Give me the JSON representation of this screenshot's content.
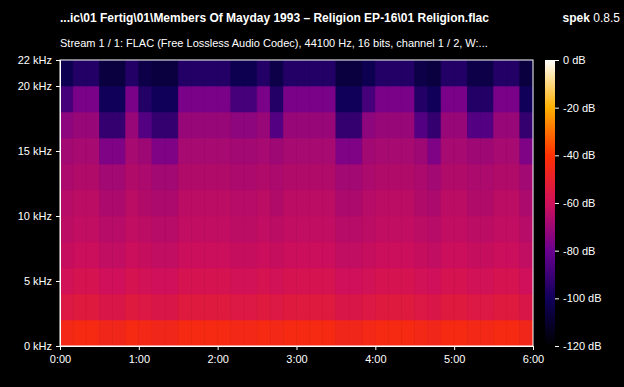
{
  "chart_data": {
    "type": "heatmap",
    "title": "...ic\\01 Fertig\\01\\Members Of Mayday 1993 – Religion EP-16\\01 Religion.flac",
    "subtitle": "Stream 1 / 1: FLAC (Free Lossless Audio Codec), 44100 Hz, 16 bits, channel 1 / 2, W:...",
    "annotations": [
      "spek 0.8.5"
    ],
    "xlim": [
      0,
      360
    ],
    "xticks": [
      {
        "value": 0,
        "label": "0:00"
      },
      {
        "value": 60,
        "label": "1:00"
      },
      {
        "value": 120,
        "label": "2:00"
      },
      {
        "value": 180,
        "label": "3:00"
      },
      {
        "value": 240,
        "label": "4:00"
      },
      {
        "value": 300,
        "label": "5:00"
      },
      {
        "value": 360,
        "label": "6:00"
      }
    ],
    "ylim": [
      0,
      22
    ],
    "yticks": [
      {
        "value": 0,
        "label": "0 kHz"
      },
      {
        "value": 5,
        "label": "5 kHz"
      },
      {
        "value": 10,
        "label": "10 kHz"
      },
      {
        "value": 15,
        "label": "15 kHz"
      },
      {
        "value": 20,
        "label": "20 kHz"
      },
      {
        "value": 22,
        "label": "22 kHz"
      }
    ],
    "x_bins": [
      0,
      10,
      20,
      30,
      40,
      50,
      60,
      70,
      80,
      90,
      100,
      110,
      120,
      130,
      140,
      150,
      160,
      170,
      180,
      190,
      200,
      210,
      220,
      230,
      240,
      250,
      260,
      270,
      280,
      290,
      300,
      310,
      320,
      330,
      340,
      350,
      360
    ],
    "y_bins": [
      0,
      2,
      4,
      6,
      8,
      10,
      12,
      14,
      16,
      18,
      20,
      22
    ],
    "values": [
      [
        -45,
        -44,
        -44,
        -46,
        -46,
        -44,
        -45,
        -46,
        -46,
        -44,
        -44,
        -44,
        -44,
        -45,
        -45,
        -44,
        -45,
        -44,
        -44,
        -44,
        -44,
        -46,
        -46,
        -45,
        -44,
        -44,
        -44,
        -45,
        -46,
        -44,
        -44,
        -45,
        -45,
        -44,
        -44,
        -46
      ],
      [
        -55,
        -54,
        -54,
        -56,
        -56,
        -54,
        -55,
        -56,
        -56,
        -54,
        -54,
        -54,
        -54,
        -55,
        -55,
        -54,
        -55,
        -54,
        -54,
        -54,
        -54,
        -56,
        -56,
        -55,
        -54,
        -54,
        -54,
        -55,
        -56,
        -54,
        -54,
        -55,
        -55,
        -54,
        -54,
        -56
      ],
      [
        -59,
        -58,
        -58,
        -60,
        -60,
        -58,
        -59,
        -60,
        -60,
        -58,
        -58,
        -58,
        -58,
        -59,
        -59,
        -58,
        -59,
        -58,
        -58,
        -58,
        -58,
        -60,
        -60,
        -59,
        -58,
        -58,
        -58,
        -59,
        -60,
        -58,
        -58,
        -59,
        -59,
        -58,
        -58,
        -60
      ],
      [
        -62,
        -61,
        -61,
        -63,
        -63,
        -61,
        -62,
        -63,
        -63,
        -61,
        -61,
        -61,
        -61,
        -62,
        -62,
        -61,
        -62,
        -61,
        -61,
        -61,
        -61,
        -63,
        -63,
        -62,
        -61,
        -61,
        -61,
        -62,
        -63,
        -61,
        -61,
        -62,
        -62,
        -61,
        -61,
        -63
      ],
      [
        -64,
        -63,
        -63,
        -65,
        -65,
        -63,
        -64,
        -65,
        -65,
        -63,
        -63,
        -63,
        -63,
        -64,
        -64,
        -63,
        -64,
        -63,
        -63,
        -63,
        -63,
        -65,
        -65,
        -64,
        -63,
        -63,
        -63,
        -64,
        -65,
        -63,
        -63,
        -64,
        -64,
        -63,
        -63,
        -65
      ],
      [
        -65,
        -64,
        -64,
        -67,
        -67,
        -64,
        -66,
        -67,
        -67,
        -64,
        -64,
        -64,
        -64,
        -65,
        -65,
        -64,
        -66,
        -64,
        -64,
        -64,
        -64,
        -67,
        -67,
        -65,
        -64,
        -64,
        -64,
        -66,
        -67,
        -64,
        -64,
        -66,
        -66,
        -64,
        -64,
        -67
      ],
      [
        -67,
        -66,
        -66,
        -69,
        -69,
        -66,
        -67,
        -69,
        -69,
        -66,
        -66,
        -66,
        -66,
        -67,
        -67,
        -66,
        -67,
        -66,
        -66,
        -66,
        -66,
        -69,
        -69,
        -67,
        -66,
        -66,
        -66,
        -67,
        -69,
        -66,
        -66,
        -67,
        -67,
        -66,
        -66,
        -69
      ],
      [
        -69,
        -68,
        -68,
        -76,
        -76,
        -68,
        -70,
        -76,
        -76,
        -68,
        -68,
        -68,
        -68,
        -69,
        -69,
        -68,
        -70,
        -68,
        -68,
        -68,
        -68,
        -76,
        -76,
        -69,
        -68,
        -68,
        -68,
        -70,
        -76,
        -68,
        -68,
        -70,
        -70,
        -68,
        -68,
        -76
      ],
      [
        -73,
        -71,
        -71,
        -92,
        -92,
        -71,
        -85,
        -92,
        -92,
        -71,
        -71,
        -71,
        -71,
        -73,
        -73,
        -71,
        -85,
        -71,
        -71,
        -71,
        -71,
        -92,
        -92,
        -73,
        -71,
        -71,
        -71,
        -85,
        -92,
        -71,
        -71,
        -85,
        -85,
        -71,
        -71,
        -92
      ],
      [
        -88,
        -77,
        -77,
        -100,
        -100,
        -77,
        -96,
        -100,
        -100,
        -77,
        -77,
        -77,
        -77,
        -88,
        -88,
        -77,
        -96,
        -77,
        -77,
        -77,
        -77,
        -100,
        -100,
        -88,
        -77,
        -77,
        -77,
        -96,
        -100,
        -77,
        -77,
        -96,
        -96,
        -77,
        -77,
        -100
      ],
      [
        -102,
        -96,
        -96,
        -106,
        -106,
        -96,
        -104,
        -106,
        -106,
        -96,
        -96,
        -96,
        -96,
        -102,
        -102,
        -96,
        -104,
        -96,
        -96,
        -96,
        -96,
        -106,
        -106,
        -102,
        -96,
        -96,
        -96,
        -104,
        -106,
        -96,
        -96,
        -104,
        -104,
        -96,
        -96,
        -106
      ]
    ],
    "colorbar": {
      "range": [
        -120,
        0
      ],
      "ticks": [
        {
          "value": 0,
          "label": "0 dB"
        },
        {
          "value": -20,
          "label": "-20 dB"
        },
        {
          "value": -40,
          "label": "-40 dB"
        },
        {
          "value": -60,
          "label": "-60 dB"
        },
        {
          "value": -80,
          "label": "-80 dB"
        },
        {
          "value": -100,
          "label": "-100 dB"
        },
        {
          "value": -120,
          "label": "-120 dB"
        }
      ]
    }
  }
}
